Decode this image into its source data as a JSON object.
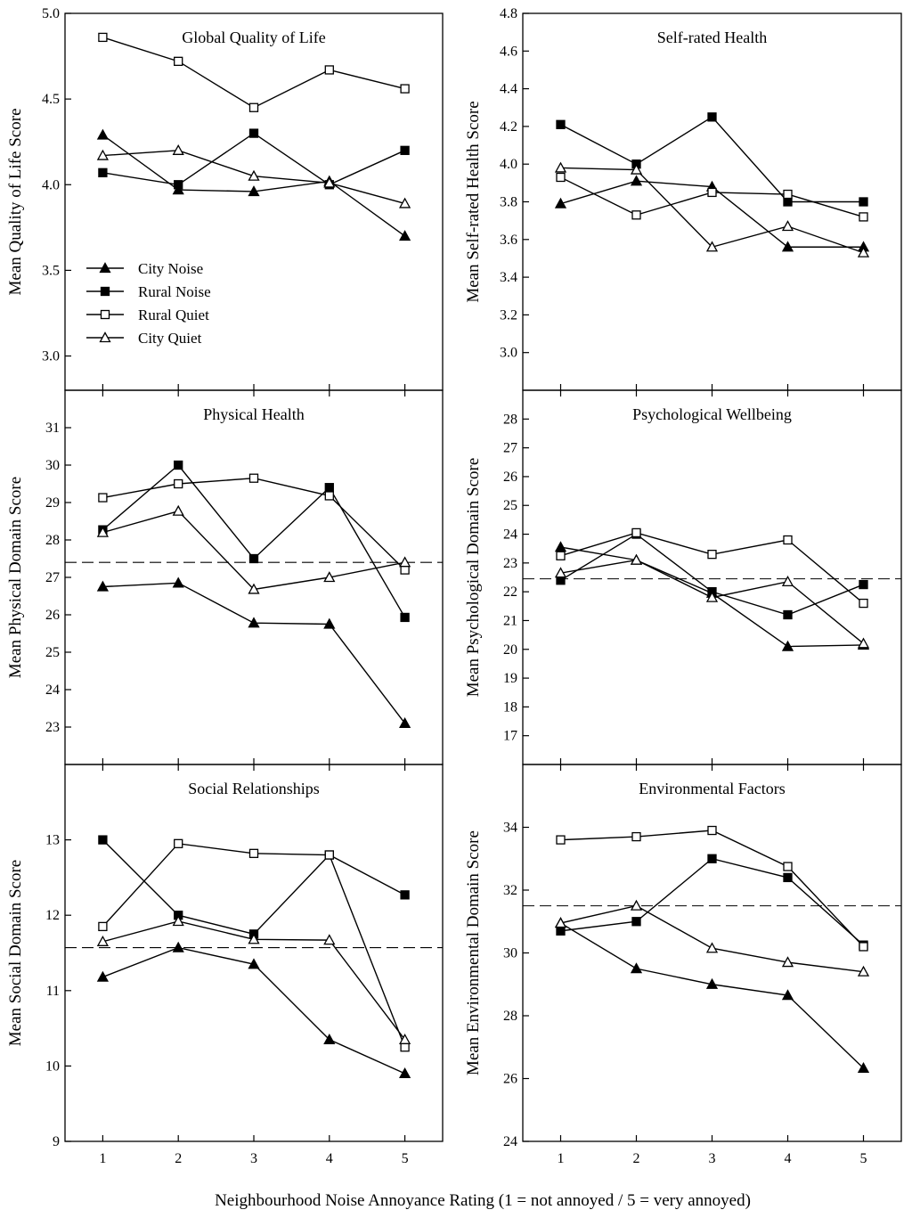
{
  "figure": {
    "xlabel": "Neighbourhood Noise Annoyance Rating (1 = not annoyed / 5 = very annoyed)"
  },
  "legend": [
    {
      "name": "City Noise",
      "marker": "filled-triangle"
    },
    {
      "name": "Rural Noise",
      "marker": "filled-square"
    },
    {
      "name": "Rural Quiet",
      "marker": "open-square"
    },
    {
      "name": "City Quiet",
      "marker": "open-triangle"
    }
  ],
  "chart_data": [
    {
      "type": "line",
      "title": "Global Quality of Life",
      "ylabel": "Mean Quality of Life Score",
      "x": [
        1,
        2,
        3,
        4,
        5
      ],
      "xticks": [
        "1",
        "2",
        "3",
        "4",
        "5"
      ],
      "ylim": [
        2.8,
        5.0
      ],
      "yticks": [
        3.0,
        3.5,
        4.0,
        4.5,
        5.0
      ],
      "yticklabels": [
        "3.0",
        "3.5",
        "4.0",
        "4.5",
        "5.0"
      ],
      "reference_line": null,
      "series": [
        {
          "name": "City Noise",
          "marker": "filled-triangle",
          "values": [
            4.29,
            3.97,
            3.96,
            4.02,
            3.7
          ]
        },
        {
          "name": "Rural Noise",
          "marker": "filled-square",
          "values": [
            4.07,
            4.0,
            4.3,
            4.0,
            4.2
          ]
        },
        {
          "name": "Rural Quiet",
          "marker": "open-square",
          "values": [
            4.86,
            4.72,
            4.45,
            4.67,
            4.56
          ]
        },
        {
          "name": "City Quiet",
          "marker": "open-triangle",
          "values": [
            4.17,
            4.2,
            4.05,
            4.01,
            3.89
          ]
        }
      ]
    },
    {
      "type": "line",
      "title": "Self-rated Health",
      "ylabel": "Mean Self-rated Health Score",
      "x": [
        1,
        2,
        3,
        4,
        5
      ],
      "xticks": [
        "1",
        "2",
        "3",
        "4",
        "5"
      ],
      "ylim": [
        2.8,
        4.8
      ],
      "yticks": [
        3.0,
        3.2,
        3.4,
        3.6,
        3.8,
        4.0,
        4.2,
        4.4,
        4.6,
        4.8
      ],
      "yticklabels": [
        "3.0",
        "3.2",
        "3.4",
        "3.6",
        "3.8",
        "4.0",
        "4.2",
        "4.4",
        "4.6",
        "4.8"
      ],
      "reference_line": null,
      "series": [
        {
          "name": "City Noise",
          "marker": "filled-triangle",
          "values": [
            3.79,
            3.91,
            3.88,
            3.56,
            3.56
          ]
        },
        {
          "name": "Rural Noise",
          "marker": "filled-square",
          "values": [
            4.21,
            4.0,
            4.25,
            3.8,
            3.8
          ]
        },
        {
          "name": "Rural Quiet",
          "marker": "open-square",
          "values": [
            3.93,
            3.73,
            3.85,
            3.84,
            3.72
          ]
        },
        {
          "name": "City Quiet",
          "marker": "open-triangle",
          "values": [
            3.98,
            3.97,
            3.56,
            3.67,
            3.53
          ]
        }
      ]
    },
    {
      "type": "line",
      "title": "Physical Health",
      "ylabel": "Mean Physical Domain Score",
      "x": [
        1,
        2,
        3,
        4,
        5
      ],
      "xticks": [
        "1",
        "2",
        "3",
        "4",
        "5"
      ],
      "ylim": [
        22,
        32
      ],
      "yticks": [
        23,
        24,
        25,
        26,
        27,
        28,
        29,
        30,
        31
      ],
      "yticklabels": [
        "23",
        "24",
        "25",
        "26",
        "27",
        "28",
        "29",
        "30",
        "31"
      ],
      "reference_line": 27.4,
      "series": [
        {
          "name": "City Noise",
          "marker": "filled-triangle",
          "values": [
            26.75,
            26.85,
            25.78,
            25.75,
            23.1
          ]
        },
        {
          "name": "Rural Noise",
          "marker": "filled-square",
          "values": [
            28.27,
            30.0,
            27.5,
            29.4,
            25.93
          ]
        },
        {
          "name": "Rural Quiet",
          "marker": "open-square",
          "values": [
            29.13,
            29.5,
            29.65,
            29.18,
            27.2
          ]
        },
        {
          "name": "City Quiet",
          "marker": "open-triangle",
          "values": [
            28.2,
            28.77,
            26.68,
            27.0,
            27.4
          ]
        }
      ]
    },
    {
      "type": "line",
      "title": "Psychological Wellbeing",
      "ylabel": "Mean Psychological Domain Score",
      "x": [
        1,
        2,
        3,
        4,
        5
      ],
      "xticks": [
        "1",
        "2",
        "3",
        "4",
        "5"
      ],
      "ylim": [
        16,
        29
      ],
      "yticks": [
        17,
        18,
        19,
        20,
        21,
        22,
        23,
        24,
        25,
        26,
        27,
        28
      ],
      "yticklabels": [
        "17",
        "18",
        "19",
        "20",
        "21",
        "22",
        "23",
        "24",
        "25",
        "26",
        "27",
        "28"
      ],
      "reference_line": 22.45,
      "series": [
        {
          "name": "City Noise",
          "marker": "filled-triangle",
          "values": [
            23.55,
            23.1,
            21.95,
            20.1,
            20.15
          ]
        },
        {
          "name": "Rural Noise",
          "marker": "filled-square",
          "values": [
            22.4,
            24.0,
            22.0,
            21.2,
            22.25
          ]
        },
        {
          "name": "Rural Quiet",
          "marker": "open-square",
          "values": [
            23.25,
            24.05,
            23.3,
            23.8,
            21.6
          ]
        },
        {
          "name": "City Quiet",
          "marker": "open-triangle",
          "values": [
            22.65,
            23.1,
            21.8,
            22.35,
            20.2
          ]
        }
      ]
    },
    {
      "type": "line",
      "title": "Social Relationships",
      "ylabel": "Mean Social Domain Score",
      "x": [
        1,
        2,
        3,
        4,
        5
      ],
      "xticks": [
        "1",
        "2",
        "3",
        "4",
        "5"
      ],
      "ylim": [
        9,
        14
      ],
      "yticks": [
        9,
        10,
        11,
        12,
        13
      ],
      "yticklabels": [
        "9",
        "10",
        "11",
        "12",
        "13"
      ],
      "reference_line": 11.57,
      "series": [
        {
          "name": "City Noise",
          "marker": "filled-triangle",
          "values": [
            11.18,
            11.57,
            11.35,
            10.35,
            9.9
          ]
        },
        {
          "name": "Rural Noise",
          "marker": "filled-square",
          "values": [
            13.0,
            12.0,
            11.75,
            12.8,
            12.27
          ]
        },
        {
          "name": "Rural Quiet",
          "marker": "open-square",
          "values": [
            11.85,
            12.95,
            12.82,
            12.8,
            10.25
          ]
        },
        {
          "name": "City Quiet",
          "marker": "open-triangle",
          "values": [
            11.65,
            11.92,
            11.68,
            11.67,
            10.35
          ]
        }
      ]
    },
    {
      "type": "line",
      "title": "Environmental Factors",
      "ylabel": "Mean Environmental Domain Score",
      "x": [
        1,
        2,
        3,
        4,
        5
      ],
      "xticks": [
        "1",
        "2",
        "3",
        "4",
        "5"
      ],
      "ylim": [
        24,
        36
      ],
      "yticks": [
        24,
        26,
        28,
        30,
        32,
        34
      ],
      "yticklabels": [
        "24",
        "26",
        "28",
        "30",
        "32",
        "34"
      ],
      "reference_line": 31.5,
      "series": [
        {
          "name": "City Noise",
          "marker": "filled-triangle",
          "values": [
            30.95,
            29.5,
            29.0,
            28.65,
            26.33
          ]
        },
        {
          "name": "Rural Noise",
          "marker": "filled-square",
          "values": [
            30.7,
            31.0,
            33.0,
            32.4,
            30.25
          ]
        },
        {
          "name": "Rural Quiet",
          "marker": "open-square",
          "values": [
            33.6,
            33.7,
            33.9,
            32.75,
            30.2
          ]
        },
        {
          "name": "City Quiet",
          "marker": "open-triangle",
          "values": [
            30.95,
            31.5,
            30.15,
            29.7,
            29.4
          ]
        }
      ]
    }
  ]
}
